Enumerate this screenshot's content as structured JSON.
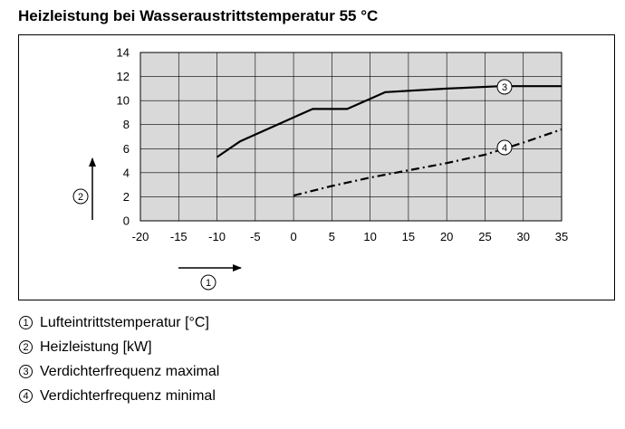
{
  "title": "Heizleistung bei Wasseraustrittstemperatur 55 °C",
  "chart_data": {
    "type": "line",
    "xlim": [
      -20,
      35
    ],
    "ylim": [
      0,
      14
    ],
    "x_ticks": [
      "-20",
      "-15",
      "-10",
      "-5",
      "0",
      "5",
      "10",
      "15",
      "20",
      "25",
      "30",
      "35"
    ],
    "y_ticks": [
      "0",
      "2",
      "4",
      "6",
      "8",
      "10",
      "12",
      "14"
    ],
    "grid": true,
    "plot_background": "#d9d9d9",
    "x_axis_marker": "1",
    "y_axis_marker": "2",
    "series": [
      {
        "marker": "3",
        "line_style": "solid",
        "x": [
          -10,
          -7,
          0,
          2.5,
          7,
          12,
          20,
          27,
          35
        ],
        "y": [
          5.3,
          6.6,
          8.6,
          9.3,
          9.3,
          10.7,
          11.0,
          11.2,
          11.2
        ]
      },
      {
        "marker": "4",
        "line_style": "dash-dot",
        "x": [
          0,
          5,
          10,
          15,
          20,
          25,
          30,
          35
        ],
        "y": [
          2.1,
          2.9,
          3.6,
          4.2,
          4.8,
          5.5,
          6.5,
          7.6
        ]
      }
    ]
  },
  "legend": [
    {
      "num": "1",
      "text": "Lufteintrittstemperatur [°C]"
    },
    {
      "num": "2",
      "text": "Heizleistung [kW]"
    },
    {
      "num": "3",
      "text": "Verdichterfrequenz maximal"
    },
    {
      "num": "4",
      "text": "Verdichterfrequenz minimal"
    }
  ]
}
